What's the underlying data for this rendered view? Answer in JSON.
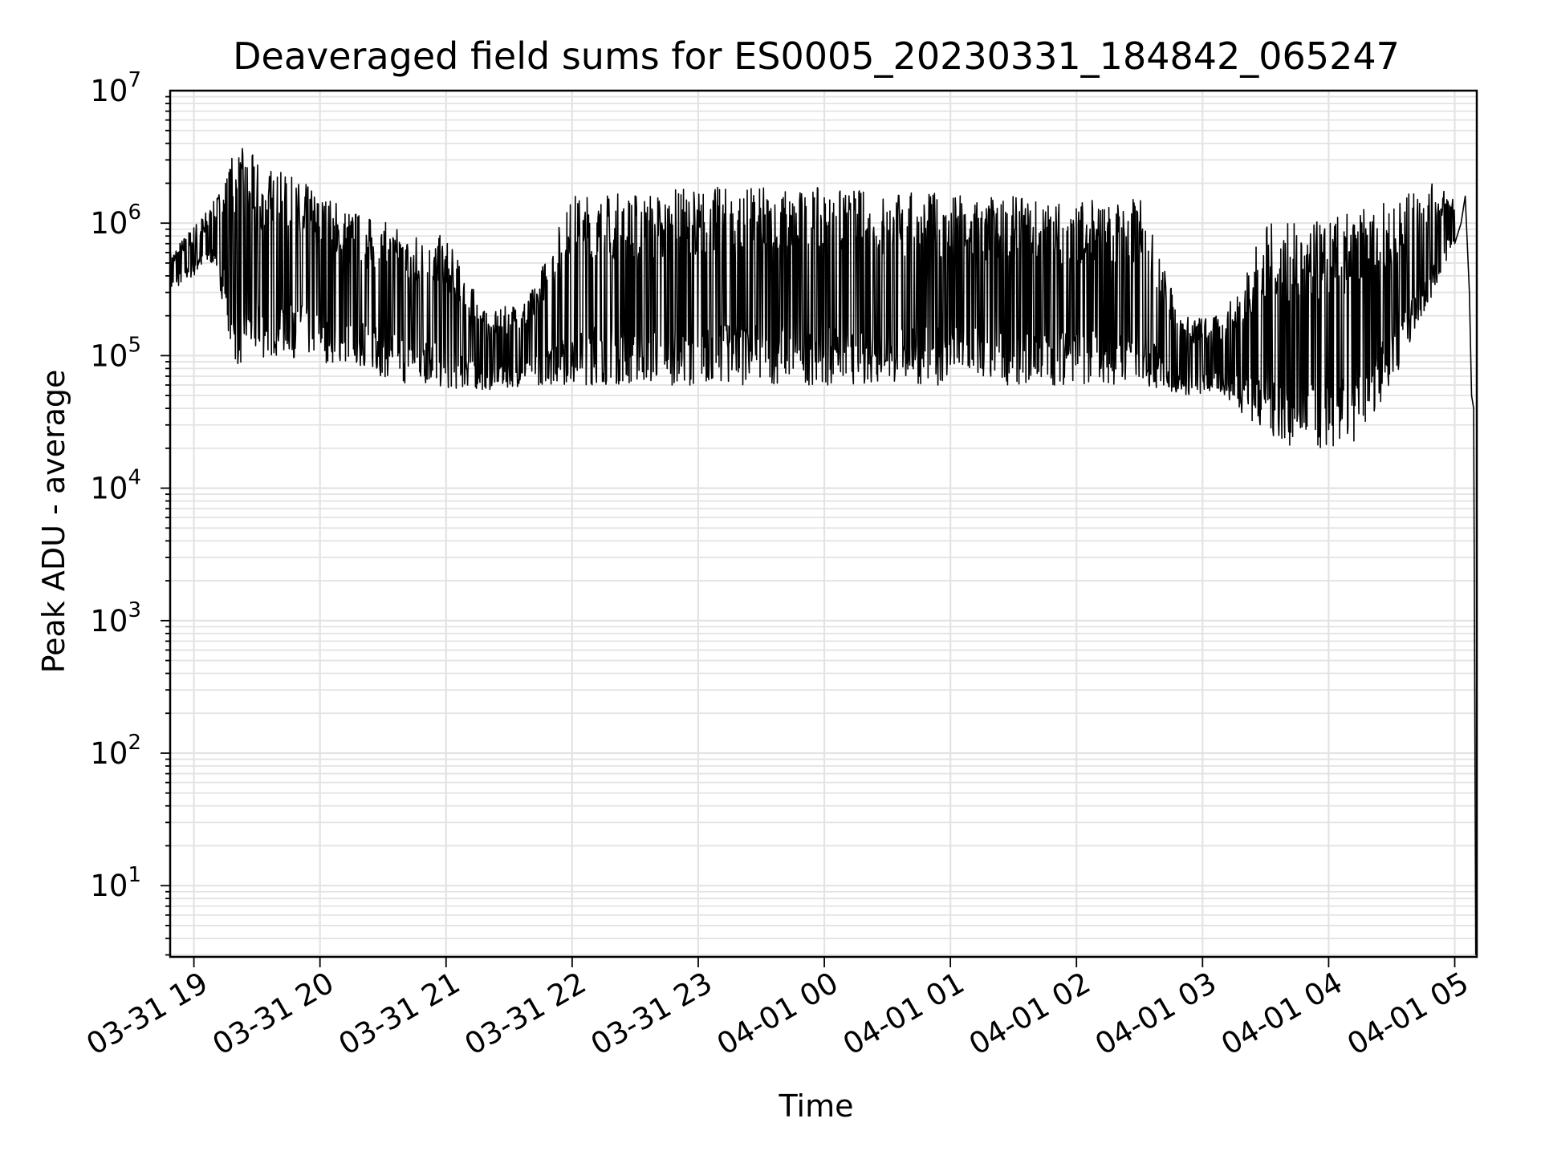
{
  "chart_data": {
    "type": "line",
    "title": "Deaveraged field sums for ES0005_20230331_184842_065247",
    "xlabel": "Time",
    "ylabel": "Peak ADU - average",
    "yscale": "log",
    "ylim": [
      2.9,
      10000000
    ],
    "xlim": [
      "2023-03-31 18:48:42",
      "2023-04-01 05:10:30"
    ],
    "grid": true,
    "line_color": "#000000",
    "x_ticks": [
      "03-31 19",
      "03-31 20",
      "03-31 21",
      "03-31 22",
      "03-31 23",
      "04-01 00",
      "04-01 01",
      "04-01 02",
      "04-01 03",
      "04-01 04",
      "04-01 05"
    ],
    "y_ticks": [
      {
        "base": "10",
        "exp": "1"
      },
      {
        "base": "10",
        "exp": "2"
      },
      {
        "base": "10",
        "exp": "3"
      },
      {
        "base": "10",
        "exp": "4"
      },
      {
        "base": "10",
        "exp": "5"
      },
      {
        "base": "10",
        "exp": "6"
      },
      {
        "base": "10",
        "exp": "7"
      }
    ],
    "series": [
      {
        "x": [
          "2023-03-31 18:48:42",
          "2023-03-31 18:55",
          "2023-03-31 19:00",
          "2023-03-31 19:05",
          "2023-03-31 19:10",
          "2023-03-31 19:15",
          "2023-03-31 19:20",
          "2023-03-31 19:25",
          "2023-03-31 19:30",
          "2023-03-31 19:40",
          "2023-03-31 19:50",
          "2023-03-31 20:00",
          "2023-03-31 20:10",
          "2023-03-31 20:20",
          "2023-03-31 20:30",
          "2023-03-31 20:40",
          "2023-03-31 20:50",
          "2023-03-31 21:00",
          "2023-03-31 21:10",
          "2023-03-31 21:20",
          "2023-03-31 21:30",
          "2023-03-31 21:45",
          "2023-03-31 22:00",
          "2023-03-31 22:15",
          "2023-03-31 22:30",
          "2023-03-31 22:45",
          "2023-03-31 23:00",
          "2023-03-31 23:15",
          "2023-03-31 23:30",
          "2023-03-31 23:45",
          "2023-04-01 00:00",
          "2023-04-01 00:15",
          "2023-04-01 00:30",
          "2023-04-01 00:45",
          "2023-04-01 01:00",
          "2023-04-01 01:15",
          "2023-04-01 01:30",
          "2023-04-01 01:45",
          "2023-04-01 02:00",
          "2023-04-01 02:15",
          "2023-04-01 02:30",
          "2023-04-01 02:45",
          "2023-04-01 02:55",
          "2023-04-01 03:00",
          "2023-04-01 03:10",
          "2023-04-01 03:20",
          "2023-04-01 03:30",
          "2023-04-01 03:40",
          "2023-04-01 03:50",
          "2023-04-01 04:00",
          "2023-04-01 04:10",
          "2023-04-01 04:20",
          "2023-04-01 04:30",
          "2023-04-01 04:40",
          "2023-04-01 04:50",
          "2023-04-01 05:00",
          "2023-04-01 05:03",
          "2023-04-01 05:05",
          "2023-04-01 05:07",
          "2023-04-01 05:08",
          "2023-04-01 05:09",
          "2023-04-01 05:10"
        ],
        "y": [
          300000,
          500000,
          1000000,
          800000,
          1200000,
          600000,
          900000,
          500000,
          300000,
          350000,
          250000,
          200000,
          300000,
          400000,
          120000,
          90000,
          300000,
          70000,
          80000,
          100000,
          120000,
          110000,
          100000,
          90000,
          95000,
          100000,
          250000,
          400000,
          450000,
          500000,
          500000,
          480000,
          450000,
          420000,
          300000,
          350000,
          300000,
          250000,
          200000,
          120000,
          110000,
          100000,
          80000,
          50000,
          70000,
          100000,
          60000,
          40000,
          35000,
          25000,
          30000,
          30000,
          60000,
          200000,
          500000,
          700000,
          1000000,
          1600000,
          300000,
          50000,
          40000,
          3
        ]
      }
    ],
    "envelope": {
      "x": [
        "2023-03-31 18:48:42",
        "2023-03-31 19:10",
        "2023-03-31 19:20",
        "2023-03-31 19:40",
        "2023-03-31 20:00",
        "2023-03-31 20:20",
        "2023-03-31 20:40",
        "2023-03-31 21:00",
        "2023-03-31 21:20",
        "2023-03-31 21:40",
        "2023-03-31 22:00",
        "2023-03-31 22:30",
        "2023-03-31 23:00",
        "2023-03-31 23:30",
        "2023-04-01 00:00",
        "2023-04-01 00:30",
        "2023-04-01 01:00",
        "2023-04-01 01:30",
        "2023-04-01 02:00",
        "2023-04-01 02:30",
        "2023-04-01 02:50",
        "2023-04-01 03:10",
        "2023-04-01 03:30",
        "2023-04-01 03:50",
        "2023-04-01 04:10",
        "2023-04-01 04:30",
        "2023-04-01 04:50",
        "2023-04-01 05:00"
      ],
      "high": [
        600000,
        1500000,
        4000000,
        2500000,
        1800000,
        1200000,
        900000,
        800000,
        200000,
        300000,
        1700000,
        1750000,
        1900000,
        1900000,
        1850000,
        1800000,
        1700000,
        1600000,
        1500000,
        1600000,
        200000,
        200000,
        1000000,
        1000000,
        1200000,
        1500000,
        2000000,
        1700000
      ],
      "low": [
        300000,
        500000,
        80000,
        100000,
        90000,
        80000,
        60000,
        55000,
        55000,
        60000,
        60000,
        60000,
        60000,
        60000,
        60000,
        60000,
        60000,
        60000,
        60000,
        60000,
        50000,
        50000,
        25000,
        18000,
        20000,
        60000,
        300000,
        700000
      ]
    }
  }
}
